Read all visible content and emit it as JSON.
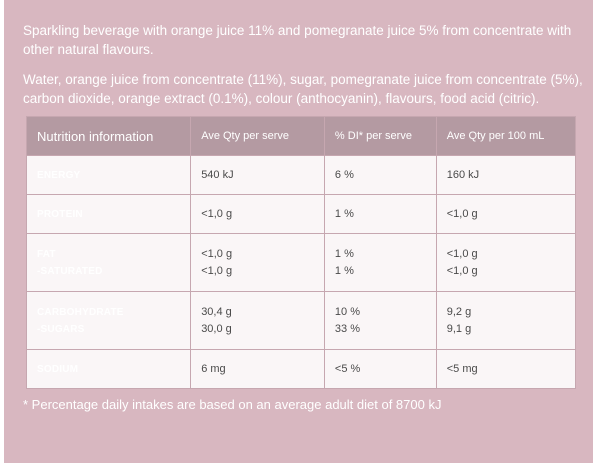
{
  "description": "Sparkling beverage with orange juice 11% and pomegranate juice 5% from concentrate with other natural flavours.",
  "ingredients": "Water, orange juice from concentrate (11%), sugar, pomegranate juice from concentrate (5%), carbon dioxide, orange extract (0.1%), colour (anthocyanin), flavours, food acid (citric).",
  "table": {
    "headers": [
      "Nutrition information",
      "Ave Qty per serve",
      "% DI* per serve",
      "Ave Qty per 100 mL"
    ],
    "rows": [
      {
        "label": "ENERGY",
        "sub": "",
        "serve": "540 kJ",
        "serve_sub": "",
        "di": "6 %",
        "di_sub": "",
        "per100": "160 kJ",
        "per100_sub": ""
      },
      {
        "label": "PROTEIN",
        "sub": "",
        "serve": "<1,0 g",
        "serve_sub": "",
        "di": "1 %",
        "di_sub": "",
        "per100": "<1,0 g",
        "per100_sub": ""
      },
      {
        "label": "FAT",
        "sub": "-SATURATED",
        "serve": "<1,0 g",
        "serve_sub": "<1,0 g",
        "di": "1 %",
        "di_sub": "1 %",
        "per100": "<1,0 g",
        "per100_sub": "<1,0 g"
      },
      {
        "label": "CARBOHYDRATE",
        "sub": "-SUGARS",
        "serve": "30,4 g",
        "serve_sub": "30,0 g",
        "di": "10 %",
        "di_sub": "33 %",
        "per100": "9,2 g",
        "per100_sub": "9,1 g"
      },
      {
        "label": "SODIUM",
        "sub": "",
        "serve": "6 mg",
        "serve_sub": "",
        "di": "<5 %",
        "di_sub": "",
        "per100": "<5 mg",
        "per100_sub": ""
      }
    ]
  },
  "footnote": "* Percentage daily intakes are based on an average adult diet of 8700 kJ"
}
